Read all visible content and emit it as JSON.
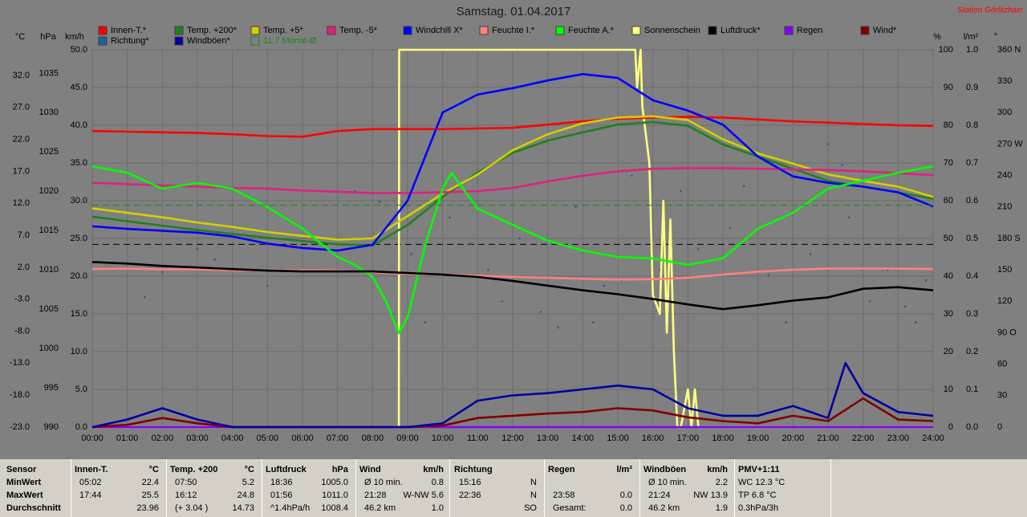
{
  "chart_data": {
    "type": "line",
    "title": "Samstag. 01.04.2017",
    "station": "Station Görlitzhain",
    "x": [
      0,
      1,
      2,
      3,
      4,
      5,
      6,
      7,
      8,
      9,
      10,
      11,
      12,
      13,
      14,
      15,
      16,
      17,
      18,
      19,
      20,
      21,
      22,
      23,
      24
    ],
    "xlim": [
      0,
      24
    ],
    "xticks": [
      {
        "value": 0,
        "label": "00:00"
      },
      {
        "value": 1,
        "label": "01:00"
      },
      {
        "value": 2,
        "label": "02:00"
      },
      {
        "value": 3,
        "label": "03:00"
      },
      {
        "value": 4,
        "label": "04:00"
      },
      {
        "value": 5,
        "label": "05:00"
      },
      {
        "value": 6,
        "label": "06:00"
      },
      {
        "value": 7,
        "label": "07:00"
      },
      {
        "value": 8,
        "label": "08:00"
      },
      {
        "value": 9,
        "label": "09:00"
      },
      {
        "value": 10,
        "label": "10:00"
      },
      {
        "value": 11,
        "label": "11:00"
      },
      {
        "value": 12,
        "label": "12:00"
      },
      {
        "value": 13,
        "label": "13:00"
      },
      {
        "value": 14,
        "label": "14:00"
      },
      {
        "value": 15,
        "label": "15:00"
      },
      {
        "value": 16,
        "label": "16:00"
      },
      {
        "value": 17,
        "label": "17:00"
      },
      {
        "value": 18,
        "label": "18:00"
      },
      {
        "value": 19,
        "label": "19:00"
      },
      {
        "value": 20,
        "label": "20:00"
      },
      {
        "value": 21,
        "label": "21:00"
      },
      {
        "value": 22,
        "label": "22:00"
      },
      {
        "value": 23,
        "label": "23:00"
      },
      {
        "value": 24,
        "label": "24:00"
      }
    ],
    "grid": true,
    "axes": [
      {
        "id": "C",
        "label": "°C",
        "ylim": [
          -23,
          36
        ],
        "yticks": [
          {
            "value": -23,
            "label": "-23.0"
          },
          {
            "value": -18,
            "label": "-18.0"
          },
          {
            "value": -13,
            "label": "-13.0"
          },
          {
            "value": -8,
            "label": "-8.0"
          },
          {
            "value": -3,
            "label": "-3.0"
          },
          {
            "value": 2,
            "label": "2.0"
          },
          {
            "value": 7,
            "label": "7.0"
          },
          {
            "value": 12,
            "label": "12.0"
          },
          {
            "value": 17,
            "label": "17.0"
          },
          {
            "value": 22,
            "label": "22.0"
          },
          {
            "value": 27,
            "label": "27.0"
          },
          {
            "value": 32,
            "label": "32.0"
          }
        ]
      },
      {
        "id": "hPa",
        "label": "hPa",
        "ylim": [
          990,
          1038
        ],
        "yticks": [
          990,
          995,
          1000,
          1005,
          1010,
          1015,
          1020,
          1025,
          1030,
          1035
        ]
      },
      {
        "id": "kmh",
        "label": "km/h",
        "ylim": [
          0,
          50
        ],
        "yticks": [
          {
            "value": 0,
            "label": "0.0"
          },
          {
            "value": 5,
            "label": "5.0"
          },
          {
            "value": 10,
            "label": "10.0"
          },
          {
            "value": 15,
            "label": "15.0"
          },
          {
            "value": 20,
            "label": "20.0"
          },
          {
            "value": 25,
            "label": "25.0"
          },
          {
            "value": 30,
            "label": "30.0"
          },
          {
            "value": 35,
            "label": "35.0"
          },
          {
            "value": 40,
            "label": "40.0"
          },
          {
            "value": 45,
            "label": "45.0"
          },
          {
            "value": 50,
            "label": "50.0"
          }
        ],
        "grid": true
      },
      {
        "id": "pct",
        "label": "%",
        "ylim": [
          0,
          100
        ],
        "yticks": [
          0,
          10,
          20,
          30,
          40,
          50,
          60,
          70,
          80,
          90,
          100
        ]
      },
      {
        "id": "lm2",
        "label": "l/m²",
        "ylim": [
          0,
          1
        ],
        "yticks": [
          {
            "value": 0,
            "label": "0.0"
          },
          0.1,
          0.2,
          0.3,
          0.4,
          0.5,
          0.6,
          0.7,
          0.8,
          0.9,
          {
            "value": 1,
            "label": "1.0"
          }
        ]
      },
      {
        "id": "deg",
        "label": "°",
        "ylim": [
          0,
          360
        ],
        "yticks": [
          0,
          30,
          60,
          {
            "value": 90,
            "label": "90 O"
          },
          120,
          150,
          {
            "value": 180,
            "label": "180 S"
          },
          210,
          240,
          {
            "value": 270,
            "label": "270 W"
          },
          300,
          330,
          {
            "value": 360,
            "label": "360 N"
          }
        ]
      }
    ],
    "series": [
      {
        "name": "Innen-T.*",
        "color": "#ff0000",
        "axis": "C",
        "values": [
          23.3,
          23.2,
          23.1,
          23.0,
          22.8,
          22.5,
          22.4,
          23.3,
          23.6,
          23.6,
          23.6,
          23.7,
          23.8,
          24.3,
          24.8,
          25.2,
          25.4,
          25.5,
          25.4,
          25.1,
          24.8,
          24.6,
          24.4,
          24.2,
          24.1
        ]
      },
      {
        "name": "Temp. +200*",
        "color": "#208020",
        "axis": "C",
        "values": [
          9.9,
          9.2,
          8.5,
          7.8,
          7.2,
          6.6,
          6.1,
          5.6,
          5.4,
          8.6,
          13.0,
          16.8,
          19.9,
          21.8,
          23.1,
          24.3,
          24.7,
          24.1,
          21.2,
          19.3,
          17.4,
          15.5,
          14.6,
          13.7,
          12.7
        ]
      },
      {
        "name": "Temp. +5*",
        "color": "#d0d000",
        "axis": "C",
        "values": [
          11.2,
          10.5,
          9.8,
          9.0,
          8.3,
          7.5,
          6.9,
          6.3,
          6.5,
          10.0,
          13.5,
          16.5,
          20.3,
          22.8,
          24.5,
          25.4,
          25.6,
          25.0,
          22.0,
          19.8,
          18.2,
          16.5,
          15.5,
          14.6,
          13.0
        ]
      },
      {
        "name": "Temp. -5*",
        "color": "#e0207f",
        "axis": "C",
        "values": [
          15.2,
          15.0,
          14.8,
          14.6,
          14.4,
          14.3,
          14.0,
          13.8,
          13.6,
          13.6,
          13.7,
          13.9,
          14.4,
          15.4,
          16.3,
          17.0,
          17.4,
          17.5,
          17.5,
          17.4,
          17.3,
          17.2,
          17.0,
          16.7,
          16.4
        ]
      },
      {
        "name": "Windchill X*",
        "color": "#0000ff",
        "axis": "C",
        "values": [
          8.4,
          8.0,
          7.7,
          7.4,
          6.8,
          5.7,
          5.0,
          4.6,
          5.5,
          12.4,
          26.2,
          29.0,
          30.0,
          31.2,
          32.2,
          31.6,
          28.1,
          26.5,
          24.3,
          19.3,
          16.2,
          15.2,
          14.6,
          13.7,
          11.5
        ]
      },
      {
        "name": "Feuchte I.*",
        "color": "#ff8080",
        "axis": "pct",
        "values": [
          41.9,
          42,
          41.8,
          41.8,
          41.6,
          41.5,
          41.6,
          41.5,
          41.1,
          40.6,
          40.4,
          40.1,
          39.8,
          39.6,
          39.3,
          39.1,
          39.2,
          39.6,
          40.4,
          41.2,
          41.7,
          42,
          42,
          42,
          41.9
        ]
      },
      {
        "name": "Feuchte A.*",
        "color": "#00ff00",
        "axis": "pct",
        "x": [
          0,
          1,
          2,
          3,
          4,
          5,
          6,
          7,
          7.5,
          8,
          8.4,
          8.75,
          9,
          9.5,
          10,
          10.25,
          11,
          12,
          13,
          14,
          15,
          16,
          17,
          18,
          19,
          20,
          21,
          22,
          23,
          24
        ],
        "values": [
          69.1,
          67.4,
          63.2,
          64.7,
          63.2,
          58.3,
          52.6,
          45.1,
          43,
          39.8,
          33,
          24.9,
          29.1,
          48,
          63.2,
          67.4,
          57.9,
          53.6,
          49.4,
          46.8,
          45.1,
          44.7,
          43,
          44.7,
          52.6,
          56.8,
          63.2,
          65.3,
          67.4,
          69.1
        ]
      },
      {
        "name": "Sonnenschein",
        "color": "#ffff80",
        "axis": "pct",
        "x": [
          0,
          8.75,
          8.76,
          15.5,
          15.55,
          15.65,
          15.7,
          15.9,
          16,
          16.2,
          16.3,
          16.4,
          16.5,
          16.6,
          16.7,
          16.8,
          17,
          17.1,
          17.2,
          17.3,
          17.5,
          24
        ],
        "values": [
          0,
          0,
          100,
          100,
          90,
          100,
          85,
          70,
          35,
          30,
          60,
          25,
          55,
          20,
          0,
          0,
          10,
          0,
          10,
          0,
          0,
          0
        ]
      },
      {
        "name": "Luftdruck*",
        "color": "#000000",
        "axis": "hPa",
        "values": [
          1011.0,
          1010.8,
          1010.5,
          1010.3,
          1010.1,
          1009.9,
          1009.8,
          1009.8,
          1009.8,
          1009.6,
          1009.4,
          1009.1,
          1008.6,
          1008.0,
          1007.4,
          1006.9,
          1006.3,
          1005.6,
          1005.0,
          1005.5,
          1006.1,
          1006.5,
          1007.6,
          1007.8,
          1007.4
        ]
      },
      {
        "name": "Regen",
        "color": "#8000ff",
        "axis": "lm2",
        "values": [
          0,
          0,
          0,
          0,
          0,
          0,
          0,
          0,
          0,
          0,
          0,
          0,
          0,
          0,
          0,
          0,
          0,
          0,
          0,
          0,
          0,
          0,
          0,
          0,
          0
        ]
      },
      {
        "name": "Wind*",
        "color": "#800000",
        "axis": "kmh",
        "values": [
          0,
          0.3,
          1.2,
          0.5,
          0,
          0,
          0,
          0,
          0,
          0,
          0.2,
          1.2,
          1.5,
          1.8,
          2.0,
          2.5,
          2.2,
          1.3,
          0.8,
          0.5,
          1.5,
          0.8,
          3.8,
          1.0,
          0.8
        ]
      },
      {
        "name": "Richtung*",
        "color": "#2060a0",
        "axis": "deg",
        "kind": "dots",
        "x": [
          1.5,
          2,
          2.3,
          3,
          3.5,
          5,
          6.2,
          7.5,
          8.2,
          9.1,
          9.5,
          10.2,
          10.8,
          11.3,
          11.7,
          12.2,
          12.8,
          13.3,
          13.8,
          14.3,
          14.6,
          15.1,
          15.4,
          16.2,
          16.8,
          17.3,
          18.2,
          18.6,
          19.3,
          19.8,
          20.5,
          21,
          21.4,
          21.6,
          22.2,
          22.7,
          23.2,
          23.5,
          23.8
        ],
        "values": [
          124,
          148,
          230,
          170,
          160,
          135,
          150,
          225,
          215,
          165,
          100,
          200,
          175,
          150,
          120,
          180,
          110,
          95,
          210,
          100,
          135,
          140,
          240,
          150,
          225,
          170,
          190,
          230,
          145,
          100,
          165,
          270,
          250,
          200,
          120,
          150,
          115,
          100,
          140
        ]
      },
      {
        "name": "Windböen*",
        "color": "#0000a0",
        "axis": "kmh",
        "x": [
          0,
          1,
          2,
          3,
          4,
          5,
          6,
          7,
          8,
          9,
          10,
          11,
          12,
          13,
          14,
          15,
          16,
          17,
          18,
          19,
          20,
          21,
          21.5,
          22,
          23,
          24
        ],
        "values": [
          0,
          1.0,
          2.5,
          1.0,
          0,
          0,
          0,
          0,
          0,
          0,
          0.5,
          3.5,
          4.2,
          4.5,
          5.0,
          5.5,
          5.0,
          2.5,
          1.5,
          1.5,
          2.8,
          1.2,
          8.5,
          4.5,
          2.0,
          1.5
        ]
      },
      {
        "name": "11.7 Monat-Ø",
        "color": "#208020",
        "axis": "C",
        "kind": "hline",
        "value": 11.7
      }
    ],
    "reference_lines": [
      {
        "axis": "hPa",
        "value": 1013.25,
        "color": "#000000"
      }
    ]
  },
  "table": {
    "columns": [
      {
        "title": "Sensor"
      },
      {
        "title": "Innen-T.",
        "unit": "°C"
      },
      {
        "title": "Temp. +200",
        "unit": "°C"
      },
      {
        "title": "Luftdruck",
        "unit": "hPa"
      },
      {
        "title": "Wind",
        "unit": "km/h"
      },
      {
        "title": "Richtung"
      },
      {
        "title": "Regen",
        "unit": "l/m²"
      },
      {
        "title": "Windböen",
        "unit": "km/h"
      },
      {
        "title": "PMV+1:11"
      }
    ],
    "rows": [
      {
        "label": "MinWert",
        "cells": [
          {
            "left": "05:02",
            "right": "22.4"
          },
          {
            "left": "07:50",
            "right": "5.2"
          },
          {
            "left": "18:36",
            "right": "1005.0"
          },
          {
            "left": "Ø 10 min.",
            "right": "0.8"
          },
          {
            "left": "15:16",
            "right": "N"
          },
          {},
          {
            "left": "Ø 10 min.",
            "right": "2.2"
          },
          {
            "left": "WC 12.3 °C"
          }
        ]
      },
      {
        "label": "MaxWert",
        "cells": [
          {
            "left": "17:44",
            "right": "25.5"
          },
          {
            "left": "16:12",
            "right": "24.8"
          },
          {
            "left": "01:56",
            "right": "1011.0"
          },
          {
            "left": "21:28",
            "right": "W-NW 5.6"
          },
          {
            "left": "22:36",
            "right": "N"
          },
          {
            "left": "23:58",
            "right": "0.0"
          },
          {
            "left": "21:24",
            "right": "NW 13.9"
          },
          {
            "left": "TP 6.8 °C"
          }
        ]
      },
      {
        "label": "Durchschnitt",
        "cells": [
          {
            "right": "23.96"
          },
          {
            "left": "(+ 3.04 )",
            "right": "14.73"
          },
          {
            "left": "^1.4hPa/h",
            "right": "1008.4"
          },
          {
            "left": "46.2 km",
            "right": "1.0"
          },
          {
            "right": "SO"
          },
          {
            "left": "Gesamt:",
            "right": "0.0"
          },
          {
            "left": "46.2 km",
            "right": "1.9"
          },
          {
            "left": "0.3hPa/3h"
          }
        ]
      }
    ]
  }
}
